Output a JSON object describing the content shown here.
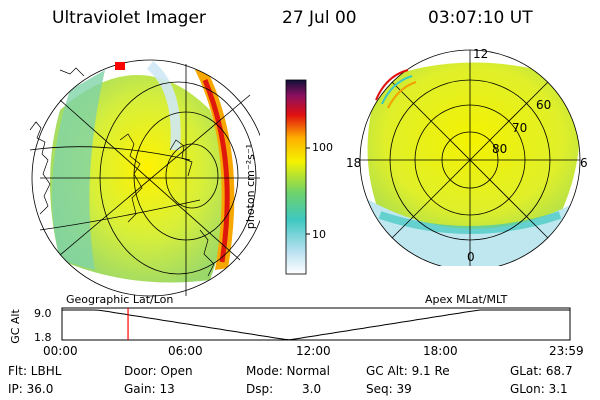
{
  "header": {
    "title": "Ultraviolet Imager",
    "date": "27 Jul 00",
    "time": "03:07:10 UT"
  },
  "colorbar": {
    "unit": "photon cm⁻²s⁻¹",
    "ticks": [
      "100",
      "10"
    ]
  },
  "left_map": {
    "label": "Geographic Lat/Lon"
  },
  "right_map": {
    "label": "Apex MLat/MLT",
    "mlt_labels": [
      "12",
      "18",
      "6",
      "0"
    ],
    "lat_labels": [
      "60",
      "70",
      "80"
    ]
  },
  "altitude_plot": {
    "ylabel": "GC Alt",
    "yticks": [
      "9.0",
      "1.8"
    ],
    "xticks": [
      "00:00",
      "06:00",
      "12:00",
      "18:00",
      "23:59"
    ],
    "current_time_hours": 3.12,
    "colors": {
      "marker": "#ff0000",
      "curve": "#000000"
    }
  },
  "info": {
    "row1": {
      "flt": "Flt: LBHL",
      "door": "Door: Open",
      "mode": "Mode: Normal",
      "gcalt": "GC Alt: 9.1 Re",
      "glat": "GLat: 68.7"
    },
    "row2": {
      "ip": "IP: 36.0",
      "gain": "Gain: 13",
      "dsp": "Dsp:",
      "dsp_val": "3.0",
      "seq": "Seq: 39",
      "glon": "GLon: 3.1"
    }
  }
}
